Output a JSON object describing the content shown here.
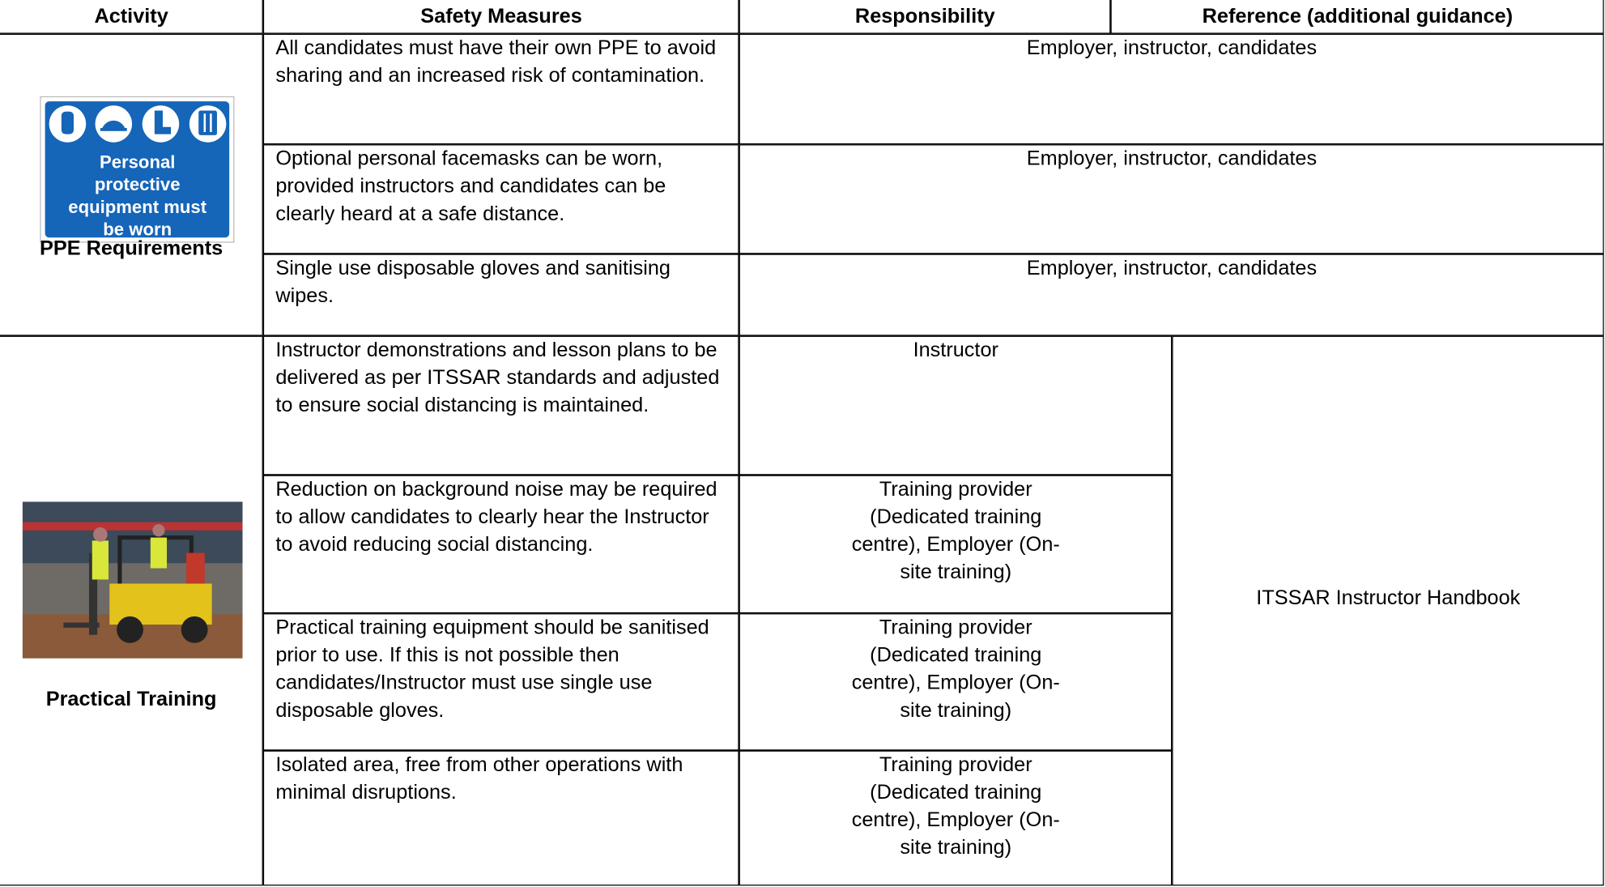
{
  "table": {
    "headers": [
      "Activity",
      "Safety Measures",
      "Responsibility",
      "Reference (additional guidance)"
    ],
    "sections": [
      {
        "activity": "PPE Requirements",
        "sign_text": "Personal protective equipment must be worn",
        "rows": [
          {
            "measure": "All candidates must have their own PPE to avoid sharing and an increased risk of contamination.",
            "responsibility": "Employer, instructor, candidates"
          },
          {
            "measure": "Optional personal facemasks can be worn, provided instructors and candidates can be clearly heard at a safe distance.",
            "responsibility": "Employer, instructor, candidates"
          },
          {
            "measure": "Single use disposable gloves and sanitising wipes.",
            "responsibility": "Employer, instructor, candidates"
          }
        ]
      },
      {
        "activity": "Practical Training",
        "reference": "ITSSAR Instructor Handbook",
        "rows": [
          {
            "measure": "Instructor demonstrations and lesson plans to be delivered as per ITSSAR standards and adjusted to ensure social distancing is maintained.",
            "responsibility": "Instructor"
          },
          {
            "measure": "Reduction on background noise may be required to allow candidates to clearly hear the Instructor to avoid reducing social distancing.",
            "responsibility": "Training provider (Dedicated training centre), Employer (On-site training)"
          },
          {
            "measure": "Practical training equipment should be sanitised prior to use. If this is not possible then candidates/Instructor must use single use disposable gloves.",
            "responsibility": "Training provider (Dedicated training centre), Employer (On-site training)"
          },
          {
            "measure": "Isolated area, free from other operations with minimal disruptions.",
            "responsibility": "Training provider (Dedicated training centre), Employer (On-site training)"
          }
        ]
      }
    ]
  }
}
